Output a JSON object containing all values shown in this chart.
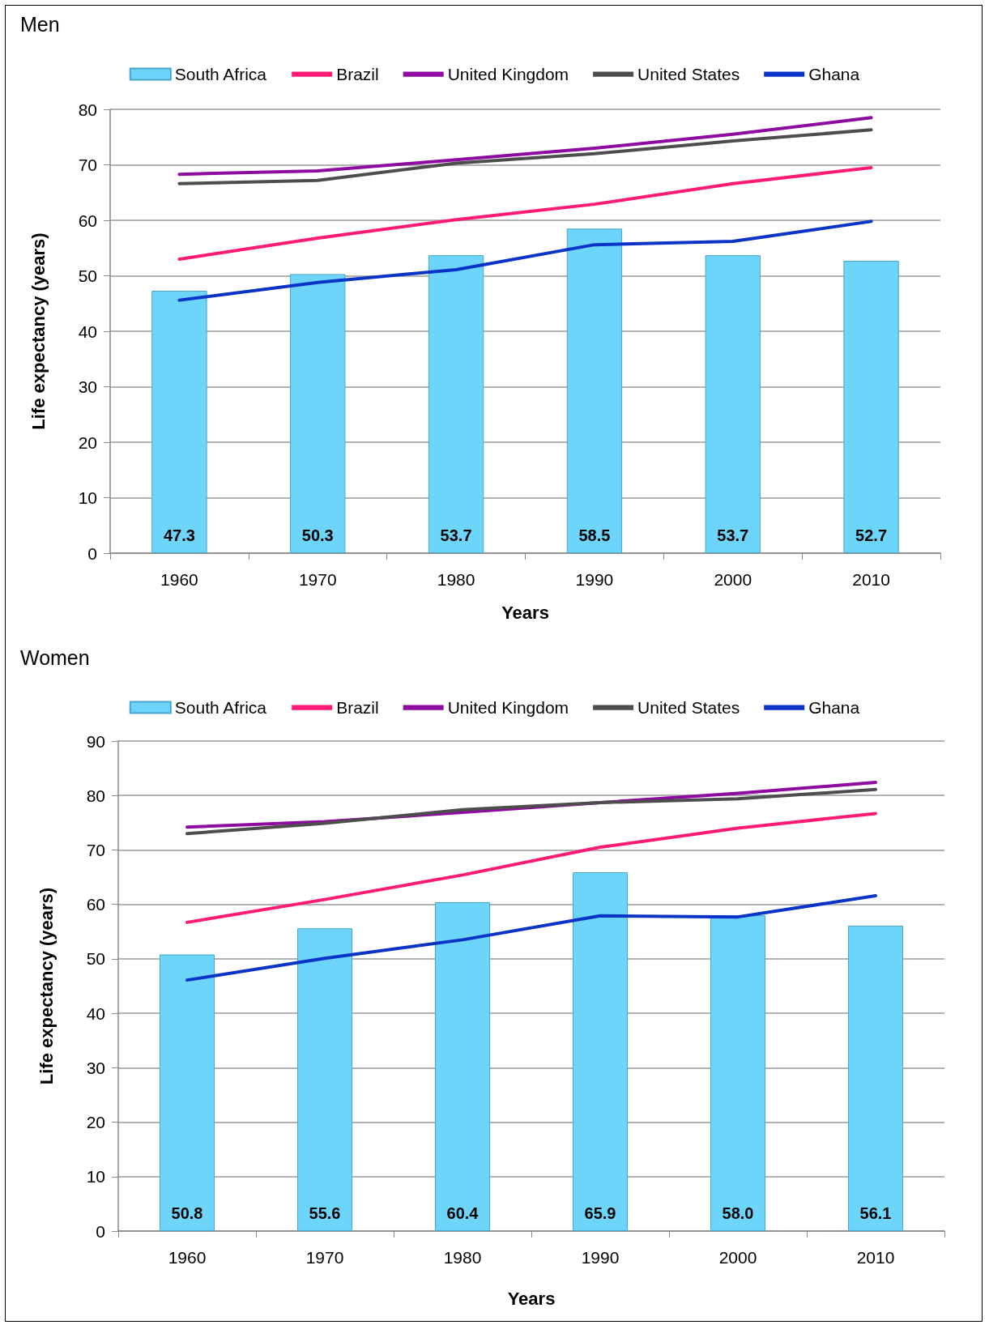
{
  "chart_data": [
    {
      "type": "bar",
      "title": "Men",
      "xlabel": "Years",
      "ylabel": "Life expectancy (years)",
      "categories": [
        "1960",
        "1970",
        "1980",
        "1990",
        "2000",
        "2010"
      ],
      "series": [
        {
          "name": "South Africa",
          "color": "#6dd5fa",
          "values": [
            47.3,
            50.3,
            53.7,
            58.5,
            53.7,
            52.7
          ],
          "value_labels": [
            "47.3",
            "50.3",
            "53.7",
            "58.5",
            "53.7",
            "52.7"
          ]
        },
        {
          "name": "Brazil",
          "type": "line",
          "color": "#ff1a75",
          "values": [
            53.0,
            56.8,
            60.1,
            62.9,
            66.6,
            69.5
          ]
        },
        {
          "name": "United Kingdom",
          "type": "line",
          "color": "#8e0aa0",
          "values": [
            68.3,
            68.9,
            70.9,
            73.0,
            75.5,
            78.5
          ]
        },
        {
          "name": "United States",
          "type": "line",
          "color": "#4d4d4d",
          "values": [
            66.6,
            67.2,
            70.3,
            72.0,
            74.3,
            76.3
          ]
        },
        {
          "name": "Ghana",
          "type": "line",
          "color": "#0a33c8",
          "values": [
            45.6,
            48.8,
            51.1,
            55.6,
            56.2,
            59.8
          ]
        }
      ],
      "ylim": [
        0,
        80
      ],
      "yticks": [
        0,
        10,
        20,
        30,
        40,
        50,
        60,
        70,
        80
      ],
      "grid": "y",
      "legend": "top",
      "marker": "none",
      "line_style": "solid"
    },
    {
      "type": "bar",
      "title": "Women",
      "xlabel": "Years",
      "ylabel": "Life expectancy (years)",
      "categories": [
        "1960",
        "1970",
        "1980",
        "1990",
        "2000",
        "2010"
      ],
      "series": [
        {
          "name": "South Africa",
          "color": "#6dd5fa",
          "values": [
            50.8,
            55.6,
            60.4,
            65.9,
            58.0,
            56.1
          ],
          "value_labels": [
            "50.8",
            "55.6",
            "60.4",
            "65.9",
            "58.0",
            "56.1"
          ]
        },
        {
          "name": "Brazil",
          "type": "line",
          "color": "#ff1a75",
          "values": [
            56.7,
            60.9,
            65.4,
            70.5,
            74.0,
            76.7
          ]
        },
        {
          "name": "United Kingdom",
          "type": "line",
          "color": "#8e0aa0",
          "values": [
            74.2,
            75.2,
            76.9,
            78.7,
            80.4,
            82.4
          ]
        },
        {
          "name": "United States",
          "type": "line",
          "color": "#4d4d4d",
          "values": [
            73.0,
            74.9,
            77.4,
            78.7,
            79.4,
            81.1
          ]
        },
        {
          "name": "Ghana",
          "type": "line",
          "color": "#0a33c8",
          "values": [
            46.1,
            50.1,
            53.5,
            57.9,
            57.7,
            61.6
          ]
        }
      ],
      "ylim": [
        0,
        90
      ],
      "yticks": [
        0,
        10,
        20,
        30,
        40,
        50,
        60,
        70,
        80,
        90
      ],
      "grid": "y",
      "legend": "top",
      "marker": "none",
      "line_style": "solid"
    }
  ]
}
